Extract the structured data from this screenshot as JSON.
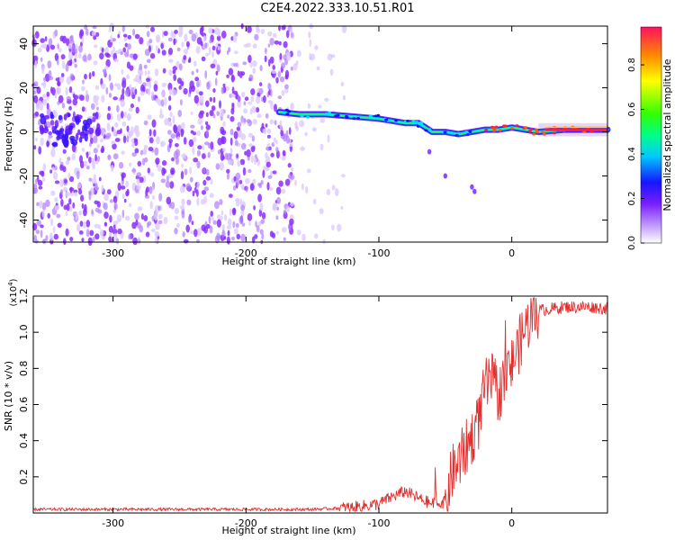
{
  "title": "C2E4.2022.333.10.51.R01",
  "chart_data": [
    {
      "type": "heatmap",
      "title": "C2E4.2022.333.10.51.R01",
      "xlabel": "Height of straight line (km)",
      "ylabel": "Frequency (Hz)",
      "xlim": [
        -360,
        72
      ],
      "ylim": [
        -50,
        48
      ],
      "x_ticks": [
        -300,
        -200,
        -100,
        0
      ],
      "y_ticks": [
        -40,
        -20,
        0,
        20,
        40
      ],
      "colorbar": {
        "label": "Normalized spectral amplitude",
        "range": [
          0,
          0.97
        ],
        "ticks": [
          0.0,
          0.2,
          0.4,
          0.6,
          0.8
        ]
      },
      "features": {
        "noise_region_x": [
          -360,
          -125
        ],
        "dense_noise_edge_x": -165,
        "signal_trace": {
          "x": [
            -175,
            -160,
            -140,
            -120,
            -100,
            -90,
            -80,
            -70,
            -60,
            -50,
            -40,
            -30,
            -20,
            -10,
            0,
            10,
            20,
            40,
            72
          ],
          "y": [
            9,
            8,
            8,
            7,
            6,
            5,
            4,
            4,
            0,
            0,
            -1,
            0,
            1,
            1,
            2,
            1,
            0,
            1,
            1
          ]
        }
      }
    },
    {
      "type": "line",
      "xlabel": "Height of straight line (km)",
      "ylabel": "SNR (10 * v/v)",
      "y_multiplier": "(x10",
      "y_multiplier_exp": "4",
      "y_multiplier_close": ")",
      "xlim": [
        -360,
        72
      ],
      "ylim": [
        0,
        1.2
      ],
      "x_ticks": [
        -300,
        -200,
        -100,
        0
      ],
      "y_ticks": [
        0.2,
        0.4,
        0.6,
        0.8,
        1.0,
        1.2
      ],
      "line_color": "#e03030",
      "series": [
        {
          "x": [
            -360,
            -300,
            -200,
            -150,
            -120,
            -100,
            -90,
            -80,
            -70,
            -60,
            -50,
            -45,
            -40,
            -35,
            -30,
            -25,
            -20,
            -15,
            -10,
            -5,
            0,
            5,
            10,
            15,
            20,
            30,
            40,
            50,
            60,
            72
          ],
          "values": [
            0.02,
            0.02,
            0.02,
            0.02,
            0.03,
            0.05,
            0.09,
            0.12,
            0.08,
            0.05,
            0.06,
            0.22,
            0.28,
            0.35,
            0.42,
            0.5,
            0.7,
            0.73,
            0.65,
            0.75,
            0.82,
            0.92,
            1.02,
            1.09,
            1.12,
            1.13,
            1.14,
            1.14,
            1.14,
            1.13
          ]
        }
      ]
    }
  ]
}
